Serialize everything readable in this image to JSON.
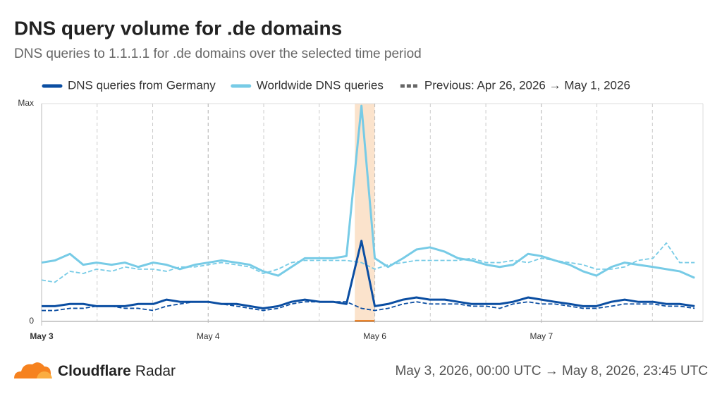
{
  "chart_data": {
    "type": "line",
    "title": "DNS query volume for .de domains",
    "subtitle": "DNS queries to 1.1.1.1 for .de domains over the selected time period",
    "previous_label": "Previous: Apr 26, 2026 → May 1, 2026",
    "x": [
      0,
      0.08,
      0.17,
      0.25,
      0.33,
      0.42,
      0.5,
      0.58,
      0.67,
      0.75,
      0.83,
      0.92,
      1,
      1.08,
      1.17,
      1.25,
      1.33,
      1.42,
      1.5,
      1.58,
      1.67,
      1.75,
      1.83,
      1.92,
      2,
      2.08,
      2.17,
      2.25,
      2.33,
      2.42,
      2.5,
      2.58,
      2.67,
      2.75,
      2.83,
      2.92,
      3,
      3.08,
      3.17,
      3.25,
      3.33,
      3.42,
      3.5,
      3.58,
      3.67,
      3.75,
      3.83,
      3.92
    ],
    "series": [
      {
        "name": "DNS queries from Germany",
        "color": "#0b4ea2",
        "dashed": false,
        "values": [
          7,
          7,
          8,
          8,
          7,
          7,
          7,
          8,
          8,
          10,
          9,
          9,
          9,
          8,
          8,
          7,
          6,
          7,
          9,
          10,
          9,
          9,
          8,
          37,
          7,
          8,
          10,
          11,
          10,
          10,
          9,
          8,
          8,
          8,
          9,
          11,
          10,
          9,
          8,
          7,
          7,
          9,
          10,
          9,
          9,
          8,
          8,
          7
        ]
      },
      {
        "name": "Worldwide DNS queries",
        "color": "#77cbe6",
        "dashed": false,
        "values": [
          27,
          28,
          31,
          26,
          27,
          26,
          27,
          25,
          27,
          26,
          24,
          26,
          27,
          28,
          27,
          26,
          23,
          21,
          25,
          29,
          29,
          29,
          30,
          99,
          29,
          25,
          29,
          33,
          34,
          32,
          29,
          28,
          26,
          25,
          26,
          31,
          30,
          28,
          26,
          23,
          21,
          25,
          27,
          26,
          25,
          24,
          23,
          20
        ]
      },
      {
        "color": "#0b4ea2",
        "dashed": true,
        "values": [
          5,
          5,
          6,
          6,
          7,
          7,
          6,
          6,
          5,
          7,
          8,
          9,
          9,
          8,
          7,
          6,
          5,
          6,
          8,
          9,
          9,
          9,
          9,
          6,
          5,
          6,
          8,
          9,
          8,
          8,
          8,
          7,
          7,
          6,
          8,
          9,
          8,
          8,
          7,
          6,
          6,
          7,
          8,
          8,
          8,
          7,
          7,
          6
        ]
      },
      {
        "color": "#77cbe6",
        "dashed": true,
        "values": [
          19,
          18,
          23,
          22,
          24,
          23,
          25,
          24,
          24,
          23,
          25,
          25,
          26,
          27,
          26,
          25,
          22,
          24,
          27,
          28,
          28,
          28,
          28,
          27,
          24,
          26,
          27,
          28,
          28,
          28,
          28,
          29,
          27,
          27,
          28,
          27,
          29,
          28,
          27,
          26,
          24,
          24,
          25,
          28,
          29,
          36,
          27,
          27
        ]
      }
    ],
    "xlim": [
      0,
      3.97
    ],
    "xticks": [
      {
        "value": 0,
        "label": "May 3"
      },
      {
        "value": 1,
        "label": "May 4"
      },
      {
        "value": 2,
        "label": "May 6"
      },
      {
        "value": 3,
        "label": "May 7"
      }
    ],
    "ylim": [
      0,
      100
    ],
    "yticks": [
      0,
      {
        "value": 100,
        "label": "Max"
      }
    ],
    "highlight": [
      1.88,
      2.0
    ],
    "highlight_color": "#fbe3cc",
    "grid": true
  },
  "footer": {
    "brand": "Cloudflare",
    "product": "Radar",
    "period": "May 3, 2026, 00:00 UTC → May 8, 2026, 23:45 UTC"
  }
}
